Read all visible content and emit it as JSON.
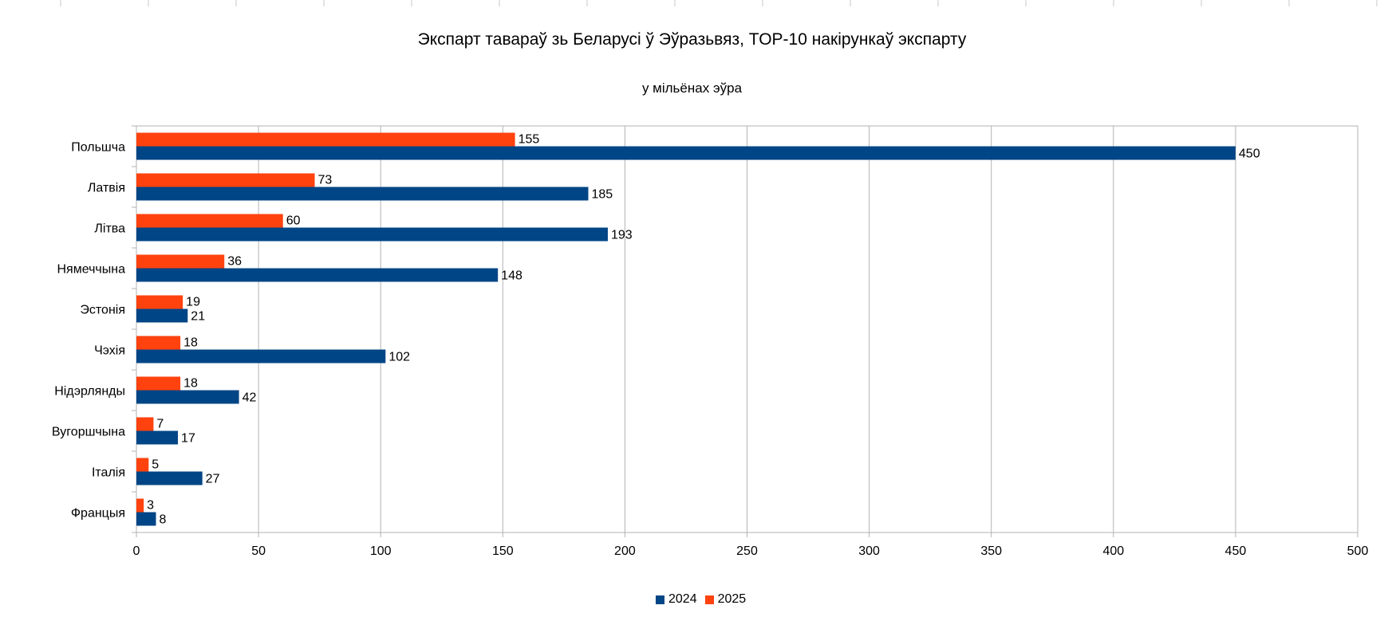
{
  "chart_data": {
    "type": "bar",
    "orientation": "horizontal",
    "title": "Экспарт тавараў зь Беларусі ў Эўразьвяз, TOP-10 накірункаў экспарту",
    "subtitle": "у мільёнах эўра",
    "categories": [
      "Польшча",
      "Латвія",
      "Літва",
      "Нямеччына",
      "Эстонія",
      "Чэхія",
      "Нідэрлянды",
      "Вугоршчына",
      "Італія",
      "Францыя"
    ],
    "series": [
      {
        "name": "2024",
        "color": "#004586",
        "values": [
          450,
          185,
          193,
          148,
          21,
          102,
          42,
          17,
          27,
          8
        ]
      },
      {
        "name": "2025",
        "color": "#ff420e",
        "values": [
          155,
          73,
          60,
          36,
          19,
          18,
          18,
          7,
          5,
          3
        ]
      }
    ],
    "xlim": [
      0,
      500
    ],
    "xticks": [
      0,
      50,
      100,
      150,
      200,
      250,
      300,
      350,
      400,
      450,
      500
    ],
    "legend_position": "bottom",
    "grid": true
  }
}
